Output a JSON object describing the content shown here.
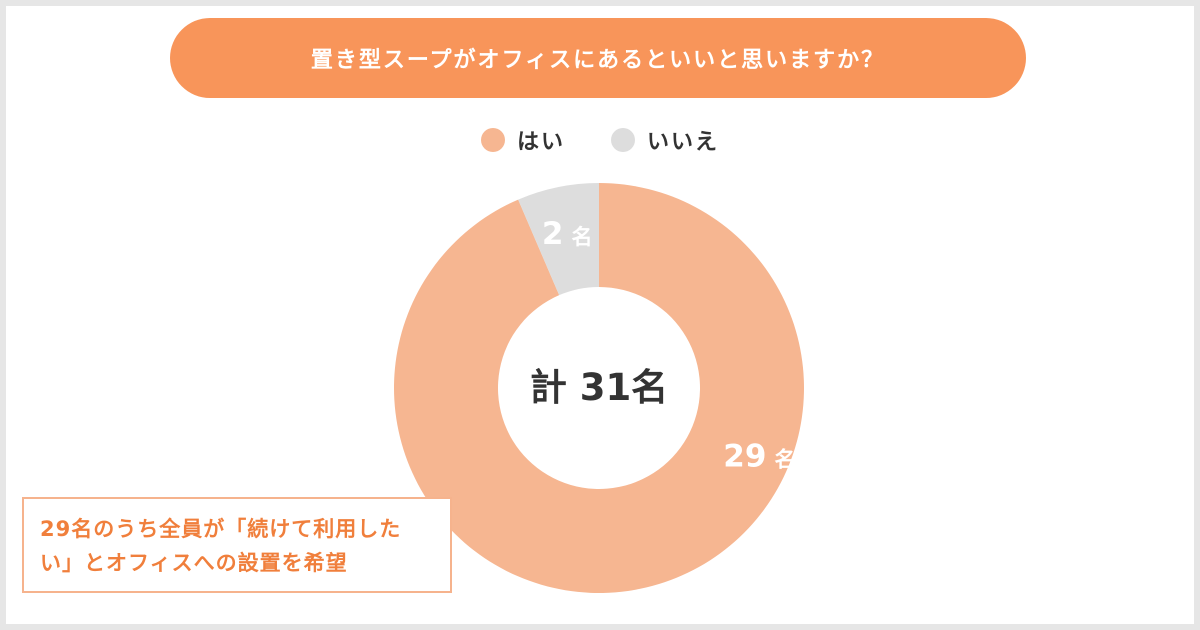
{
  "colors": {
    "accent": "#f8955a",
    "yes": "#f6b691",
    "no": "#dddddd",
    "text": "#333333",
    "callout_text": "#f07f3c",
    "callout_border": "#f6b38d"
  },
  "chart_data": {
    "type": "pie",
    "title": "置き型スープがオフィスにあるといいと思いますか？",
    "donut": true,
    "center_label": "計 31名",
    "legend_position": "top",
    "unit": "名",
    "slices": [
      {
        "label": "はい",
        "value": 29,
        "data_label": "29",
        "color": "#f6b691"
      },
      {
        "label": "いいえ",
        "value": 2,
        "data_label": "2",
        "color": "#dddddd"
      }
    ]
  },
  "callout": {
    "line1": "29名のうち全員が「続けて利用した",
    "line2": "い」とオフィスへの設置を希望"
  }
}
